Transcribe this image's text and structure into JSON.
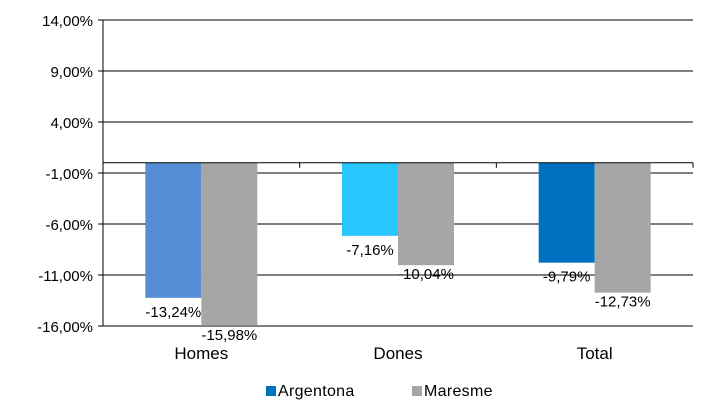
{
  "chart_data": {
    "type": "bar",
    "categories": [
      "Homes",
      "Dones",
      "Total"
    ],
    "series": [
      {
        "name": "Argentona",
        "values": [
          -13.24,
          -7.16,
          -9.79
        ],
        "colors": [
          "#558ED5",
          "#27C6FF",
          "#0070C0"
        ]
      },
      {
        "name": "Maresme",
        "values": [
          -15.98,
          -10.04,
          -12.73
        ],
        "colors": [
          "#A6A6A6",
          "#A6A6A6",
          "#A6A6A6"
        ]
      }
    ],
    "data_labels": [
      [
        "-13,24%",
        "-7,16%",
        "-9,79%"
      ],
      [
        "-15,98%",
        "-10,04%",
        "-12,73%"
      ]
    ],
    "y_ticks": [
      14,
      9,
      4,
      -1,
      -6,
      -11,
      -16
    ],
    "y_tick_labels": [
      "14,00%",
      "9,00%",
      "4,00%",
      "-1,00%",
      "-6,00%",
      "-11,00%",
      "-16,00%"
    ],
    "ylim": [
      -16,
      14
    ],
    "baseline": 0,
    "grid": true,
    "legend_position": "bottom",
    "legend": [
      {
        "label": "Argentona",
        "color": "#0070C0"
      },
      {
        "label": "Maresme",
        "color": "#A6A6A6"
      }
    ]
  }
}
